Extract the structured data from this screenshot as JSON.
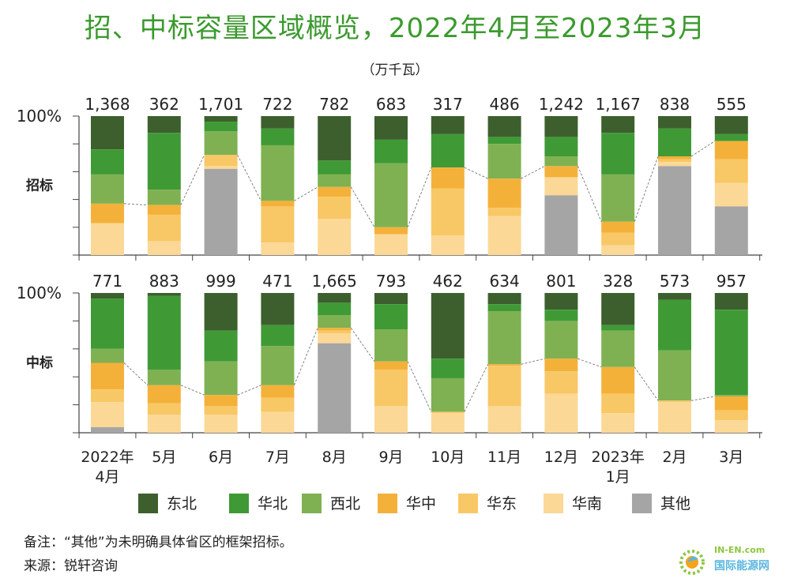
{
  "title": "招、中标容量区域概览，2022年4月至2023年3月",
  "unit": "（万千瓦）",
  "note": "备注：“其他”为未明确具体省区的框架招标。",
  "source": "来源：锐轩咨询",
  "logo": {
    "top": "IN-EN.com",
    "bottom": "国际能源网"
  },
  "colors": {
    "东北": "#3d5f2e",
    "华北": "#3f9a36",
    "西北": "#7fb152",
    "华中": "#f4b13a",
    "华东": "#f8c866",
    "华南": "#fbd896",
    "其他": "#a5a5a5"
  },
  "chart_data": {
    "type": "bar",
    "stacked_percent": true,
    "categories": [
      "2022年\n4月",
      "5月",
      "6月",
      "7月",
      "8月",
      "9月",
      "10月",
      "11月",
      "12月",
      "2023年\n1月",
      "2月",
      "3月"
    ],
    "legend": [
      "东北",
      "华北",
      "西北",
      "华中",
      "华东",
      "华南",
      "其他"
    ],
    "ylim": [
      0,
      100
    ],
    "ytick_label": "100%",
    "panels": [
      {
        "label": "招标",
        "totals": [
          "1,368",
          "362",
          "1,701",
          "722",
          "782",
          "683",
          "317",
          "486",
          "1,242",
          "1,167",
          "838",
          "555"
        ],
        "series": [
          {
            "name": "东北",
            "values": [
              24,
              12,
              4,
              9,
              32,
              17,
              13,
              15,
              15,
              12,
              9,
              13
            ]
          },
          {
            "name": "华北",
            "values": [
              18,
              41,
              7,
              12,
              10,
              17,
              24,
              5,
              14,
              30,
              20,
              5
            ]
          },
          {
            "name": "西北",
            "values": [
              21,
              11,
              17,
              40,
              9,
              46,
              0,
              25,
              7,
              34,
              0,
              0
            ]
          },
          {
            "name": "华中",
            "values": [
              14,
              7,
              0,
              4,
              7,
              5,
              15,
              21,
              8,
              8,
              2,
              13
            ]
          },
          {
            "name": "华东",
            "values": [
              0,
              19,
              8,
              26,
              16,
              0,
              34,
              6,
              0,
              9,
              2,
              17
            ]
          },
          {
            "name": "华南",
            "values": [
              23,
              10,
              2,
              9,
              26,
              15,
              14,
              28,
              13,
              7,
              3,
              17
            ]
          },
          {
            "name": "其他",
            "values": [
              0,
              0,
              62,
              0,
              0,
              0,
              0,
              0,
              43,
              0,
              64,
              35
            ]
          }
        ]
      },
      {
        "label": "中标",
        "totals": [
          "771",
          "883",
          "999",
          "471",
          "1,665",
          "793",
          "462",
          "634",
          "801",
          "328",
          "573",
          "957"
        ],
        "series": [
          {
            "name": "东北",
            "values": [
              4,
              2,
              27,
              23,
              7,
              8,
              47,
              8,
              12,
              23,
              5,
              12
            ]
          },
          {
            "name": "华北",
            "values": [
              36,
              53,
              22,
              15,
              9,
              18,
              14,
              5,
              8,
              4,
              36,
              61
            ]
          },
          {
            "name": "西北",
            "values": [
              10,
              11,
              24,
              28,
              9,
              23,
              24,
              38,
              27,
              26,
              36,
              1
            ]
          },
          {
            "name": "华中",
            "values": [
              19,
              13,
              8,
              9,
              2,
              6,
              0,
              1,
              9,
              19,
              0,
              10
            ]
          },
          {
            "name": "华东",
            "values": [
              9,
              8,
              6,
              10,
              2,
              26,
              1,
              29,
              16,
              14,
              1,
              7
            ]
          },
          {
            "name": "华南",
            "values": [
              18,
              13,
              13,
              15,
              7,
              19,
              14,
              19,
              28,
              14,
              22,
              9
            ]
          },
          {
            "name": "其他",
            "values": [
              4,
              0,
              0,
              0,
              64,
              0,
              0,
              0,
              0,
              0,
              0,
              0
            ]
          }
        ]
      }
    ]
  }
}
